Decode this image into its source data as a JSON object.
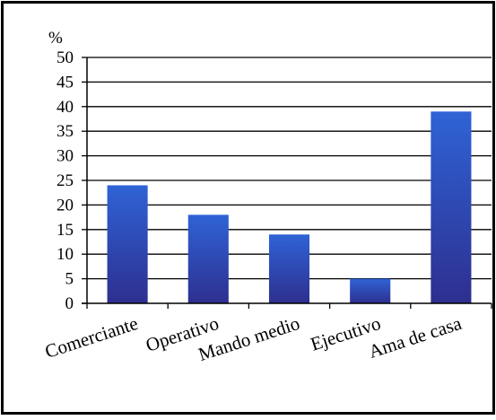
{
  "chart_data": {
    "type": "bar",
    "unit_label": "%",
    "categories": [
      "Comerciante",
      "Operativo",
      "Mando medio",
      "Ejecutivo",
      "Ama de casa"
    ],
    "values": [
      24,
      18,
      14,
      5,
      39
    ],
    "y_ticks": [
      "0",
      "5",
      "10",
      "15",
      "20",
      "25",
      "30",
      "35",
      "40",
      "45",
      "50"
    ],
    "ylim": [
      0,
      50
    ],
    "grid": true,
    "legend": "none",
    "bar_gradient": {
      "top": "#2f63d6",
      "bottom": "#2e2f8f"
    },
    "gridline_color": "#000000",
    "border_color": "#000000"
  }
}
